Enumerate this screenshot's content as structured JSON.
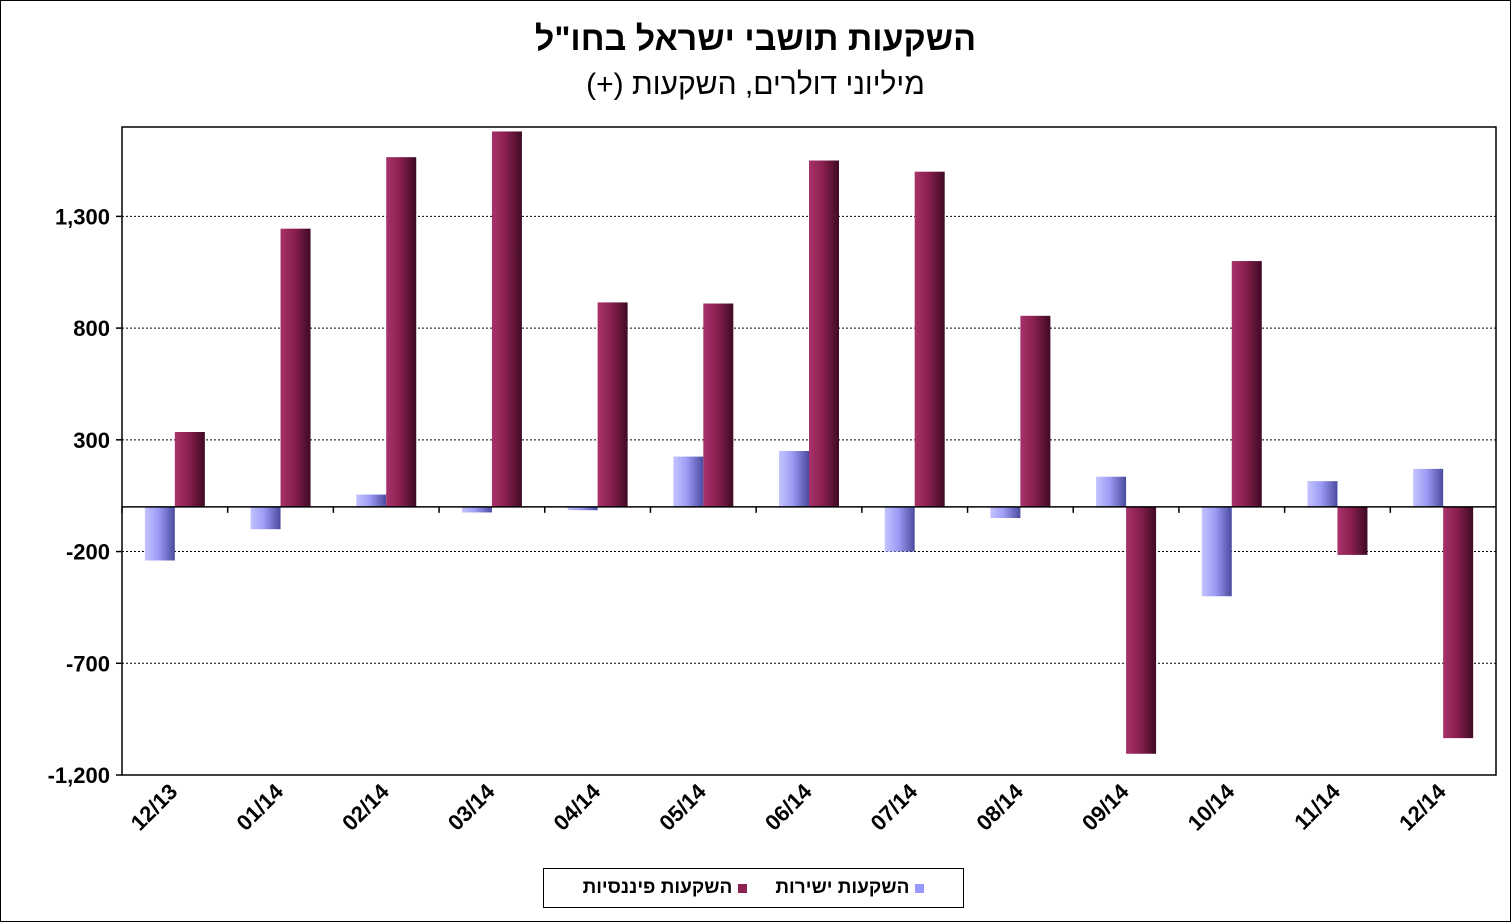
{
  "chart_data": {
    "type": "bar",
    "title": "השקעות תושבי ישראל בחו\"ל",
    "subtitle": "מיליוני דולרים, השקעות (+)",
    "categories": [
      "12/13",
      "01/14",
      "02/14",
      "03/14",
      "04/14",
      "05/14",
      "06/14",
      "07/14",
      "08/14",
      "09/14",
      "10/14",
      "11/14",
      "12/14"
    ],
    "y_ticks": [
      "1,300",
      "800",
      "300",
      "-200",
      "-700",
      "-1,200"
    ],
    "ylim": [
      -1200,
      1700
    ],
    "grid": true,
    "legend_position": "bottom",
    "series": [
      {
        "name": "השקעות ישירות",
        "color": "#9999ff",
        "values": [
          -240,
          -100,
          55,
          -25,
          -15,
          225,
          250,
          -200,
          -50,
          135,
          -400,
          115,
          170
        ]
      },
      {
        "name": "השקעות פיננסיות",
        "color": "#8b2252",
        "values": [
          335,
          1245,
          1565,
          1680,
          915,
          910,
          1550,
          1500,
          855,
          -1105,
          1100,
          -215,
          -1035
        ]
      }
    ]
  }
}
